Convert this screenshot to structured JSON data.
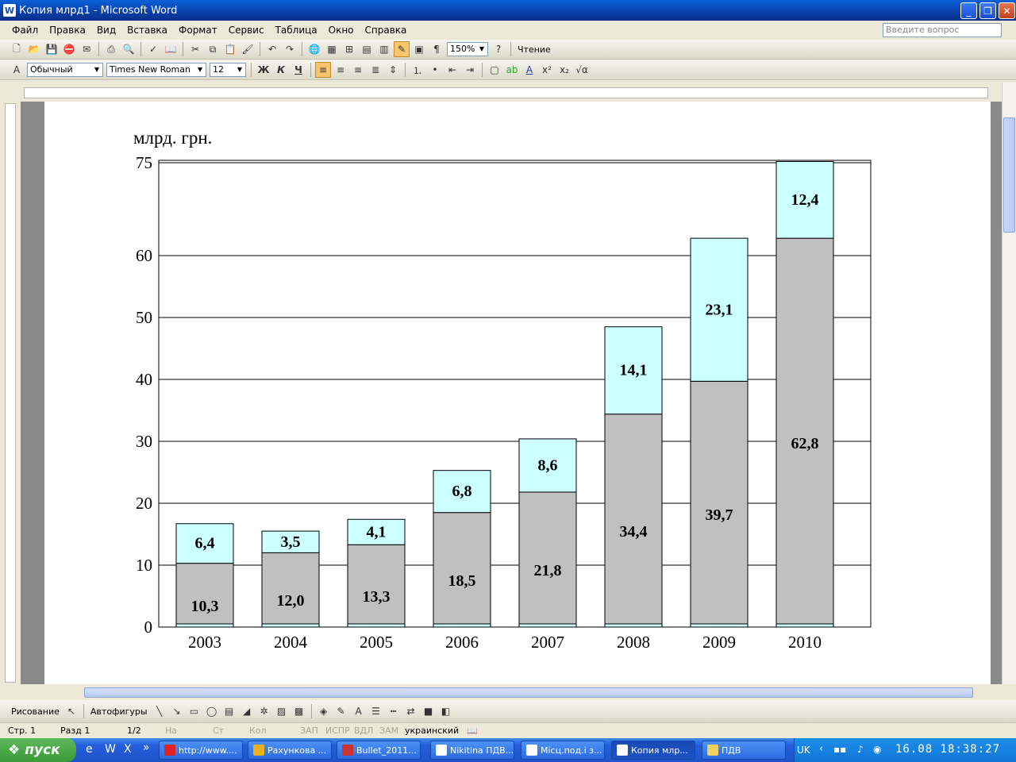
{
  "window": {
    "title": "Копия млрд1 - Microsoft Word",
    "icon": "word-icon"
  },
  "menu": [
    "Файл",
    "Правка",
    "Вид",
    "Вставка",
    "Формат",
    "Сервис",
    "Таблица",
    "Окно",
    "Справка"
  ],
  "ask_placeholder": "Введите вопрос",
  "toolbar": {
    "zoom": "150%",
    "reading": "Чтение",
    "style": "Обычный",
    "font": "Times New Roman",
    "size": "12"
  },
  "format_buttons": {
    "bold": "Ж",
    "italic": "К",
    "underline": "Ч"
  },
  "drawing": {
    "draw_label": "Рисование",
    "autoshapes_label": "Автофигуры"
  },
  "status": {
    "page": "Стр. 1",
    "section": "Разд 1",
    "pages": "1/2",
    "at": "На",
    "line": "Ст",
    "col": "Кол",
    "rec": "ЗАП",
    "trk": "ИСПР",
    "ext": "ВДЛ",
    "ovr": "ЗАМ",
    "lang": "украинский"
  },
  "taskbar": {
    "start": "пуск",
    "tasks": [
      "http://www....",
      "Рахункова ...",
      "Bullet_2011...",
      "Nikitina ПДВ...",
      "Місц.под.і з...",
      "Копия млр...",
      "ПДВ"
    ],
    "lang": "UK",
    "clock": "16.08  18:38:27"
  },
  "chart_data": {
    "type": "bar",
    "stacked": true,
    "ylabel": "млрд. грн.",
    "ylim": [
      0,
      75
    ],
    "yticks": [
      0,
      10,
      20,
      30,
      40,
      50,
      60,
      75
    ],
    "categories": [
      "2003",
      "2004",
      "2005",
      "2006",
      "2007",
      "2008",
      "2009",
      "2010"
    ],
    "series": [
      {
        "values": [
          10.3,
          12.0,
          13.3,
          18.5,
          21.8,
          34.4,
          39.7,
          62.8
        ],
        "labels": [
          "10,3",
          "12,0",
          "13,3",
          "18,5",
          "21,8",
          "34,4",
          "39,7",
          "62,8"
        ],
        "color": "#c0c0c0"
      },
      {
        "values": [
          6.4,
          3.5,
          4.1,
          6.8,
          8.6,
          14.1,
          23.1,
          12.4
        ],
        "labels": [
          "6,4",
          "3,5",
          "4,1",
          "6,8",
          "8,6",
          "14,1",
          "23,1",
          "12,4"
        ],
        "color": "#ccffff"
      }
    ],
    "grid": true,
    "legend": "none"
  }
}
